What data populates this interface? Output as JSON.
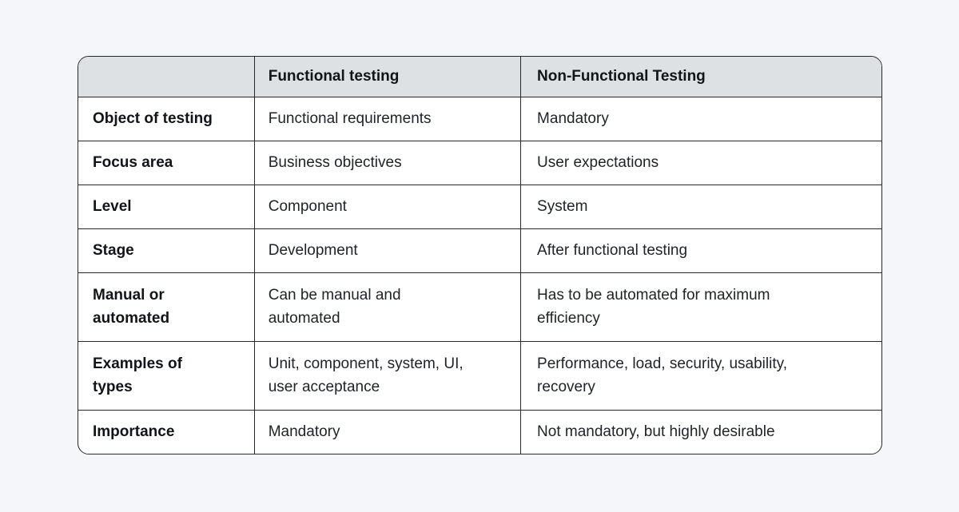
{
  "colors": {
    "page_background": "#f4f6f9",
    "header_background": "#dee1e4",
    "border": "#26282b",
    "cell_background": "#ffffff",
    "heading_text": "#111418",
    "body_text": "#202428"
  },
  "table": {
    "header": {
      "aspect": "",
      "functional": "Functional testing",
      "nonfunctional": "Non-Functional Testing"
    },
    "rows": [
      {
        "aspect": "Object of testing",
        "functional": "Functional requirements",
        "nonfunctional": "Mandatory"
      },
      {
        "aspect": "Focus area",
        "functional": "Business objectives",
        "nonfunctional": "User expectations"
      },
      {
        "aspect": "Level",
        "functional": "Component",
        "nonfunctional": "System"
      },
      {
        "aspect": "Stage",
        "functional": "Development",
        "nonfunctional": "After functional testing"
      },
      {
        "aspect": "Manual or automated",
        "functional": "Can be manual and automated",
        "nonfunctional": "Has to be automated for maximum efficiency"
      },
      {
        "aspect": "Examples of types",
        "functional": "Unit, component, system, UI, user acceptance",
        "nonfunctional": "Performance, load, security, usability, recovery"
      },
      {
        "aspect": "Importance",
        "functional": "Mandatory",
        "nonfunctional": "Not mandatory, but highly desirable"
      }
    ]
  },
  "chart_data": {
    "type": "table",
    "columns": [
      "",
      "Functional testing",
      "Non-Functional Testing"
    ],
    "rows": [
      [
        "Object of testing",
        "Functional requirements",
        "Mandatory"
      ],
      [
        "Focus area",
        "Business objectives",
        "User expectations"
      ],
      [
        "Level",
        "Component",
        "System"
      ],
      [
        "Stage",
        "Development",
        "After functional testing"
      ],
      [
        "Manual or automated",
        "Can be manual and automated",
        "Has to be automated for maximum efficiency"
      ],
      [
        "Examples of types",
        "Unit, component, system, UI, user acceptance",
        "Performance, load, security, usability, recovery"
      ],
      [
        "Importance",
        "Mandatory",
        "Not mandatory, but highly desirable"
      ]
    ],
    "legend_position": "none",
    "grid": true
  }
}
